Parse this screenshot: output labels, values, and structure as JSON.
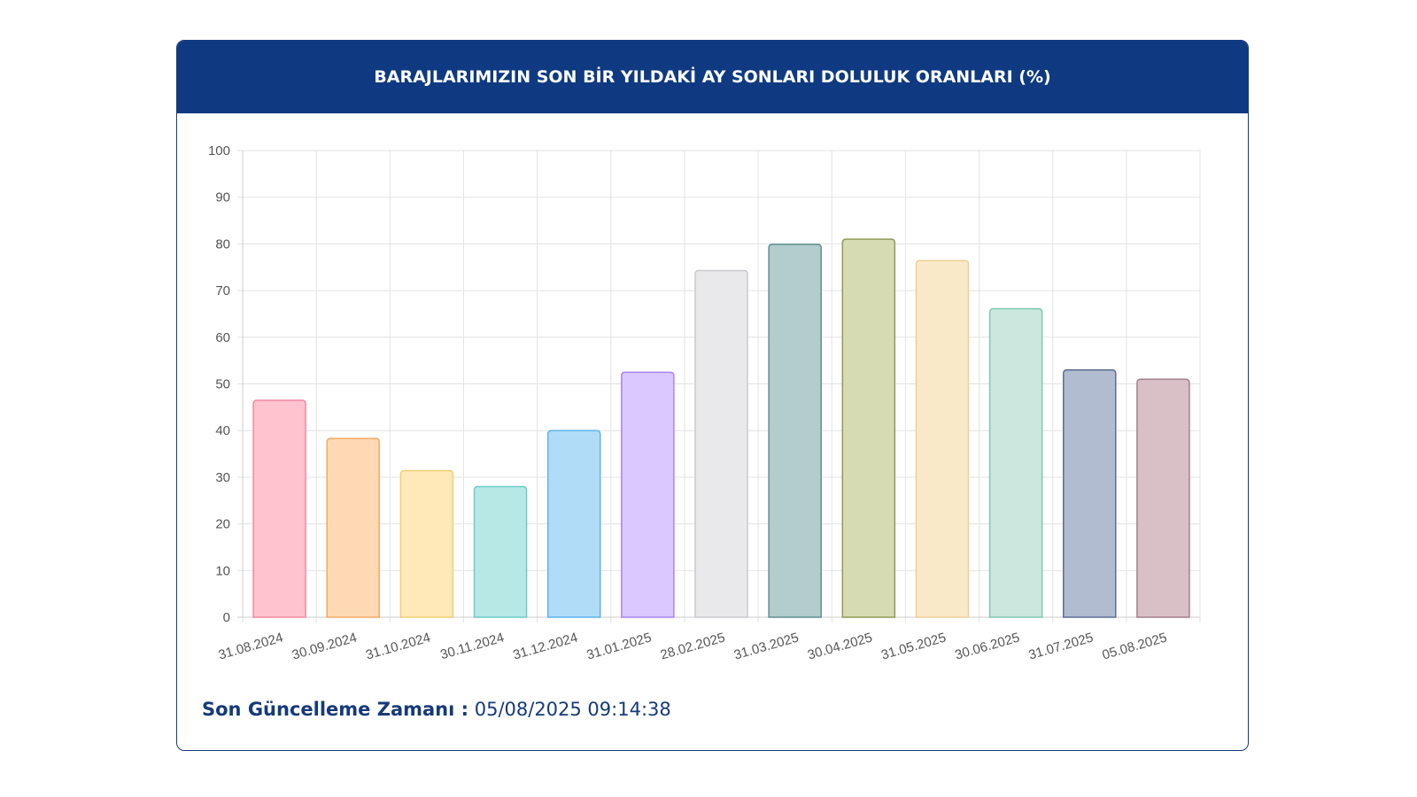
{
  "header": {
    "title": "BARAJLARIMIZIN SON BİR YILDAKİ AY SONLARI DOLULUK ORANLARI (%)"
  },
  "footer": {
    "label": "Son Güncelleme Zamanı :",
    "value": "05/08/2025 09:14:38"
  },
  "chart_data": {
    "type": "bar",
    "title": "BARAJLARIMIZIN SON BİR YILDAKİ AY SONLARI DOLULUK ORANLARI (%)",
    "xlabel": "",
    "ylabel": "",
    "ylim": [
      0,
      100
    ],
    "yticks": [
      0,
      10,
      20,
      30,
      40,
      50,
      60,
      70,
      80,
      90,
      100
    ],
    "grid": true,
    "legend": "none",
    "categories": [
      "31.08.2024",
      "30.09.2024",
      "31.10.2024",
      "30.11.2024",
      "31.12.2024",
      "31.01.2025",
      "28.02.2025",
      "31.03.2025",
      "30.04.2025",
      "31.05.2025",
      "30.06.2025",
      "31.07.2025",
      "05.08.2025"
    ],
    "values": [
      46.5,
      38.3,
      31.4,
      28.0,
      40.0,
      52.5,
      74.3,
      79.9,
      81.0,
      76.4,
      66.1,
      53.0,
      51.0
    ],
    "colors": [
      {
        "fill": "#ffc2cf",
        "stroke": "#f08aa2"
      },
      {
        "fill": "#ffd9b4",
        "stroke": "#f4a965"
      },
      {
        "fill": "#ffe9b8",
        "stroke": "#f1cf72"
      },
      {
        "fill": "#b8e8e6",
        "stroke": "#6ccbc8"
      },
      {
        "fill": "#b0dcf8",
        "stroke": "#5cb4ec"
      },
      {
        "fill": "#dac9ff",
        "stroke": "#a884f0"
      },
      {
        "fill": "#e9e9ec",
        "stroke": "#c9cacf"
      },
      {
        "fill": "#b3cccc",
        "stroke": "#5f8f91"
      },
      {
        "fill": "#d6dbb3",
        "stroke": "#8f9b55"
      },
      {
        "fill": "#fae9c8",
        "stroke": "#eed097"
      },
      {
        "fill": "#cbe8df",
        "stroke": "#7fc7b0"
      },
      {
        "fill": "#b1bcd1",
        "stroke": "#5d6d93"
      },
      {
        "fill": "#d8c0c6",
        "stroke": "#a6808a"
      }
    ]
  }
}
